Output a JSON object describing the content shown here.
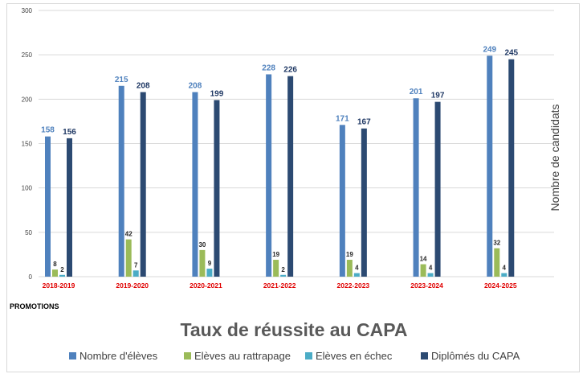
{
  "chart_data": {
    "type": "bar",
    "title": "Taux de réussite au CAPA",
    "xlabel": "PROMOTIONS",
    "ylabel": "Nombre de candidats",
    "ylim": [
      0,
      300
    ],
    "yticks": [
      0,
      50,
      100,
      150,
      200,
      250,
      300
    ],
    "grid": true,
    "legend_position": "bottom",
    "categories": [
      "2018-2019",
      "2019-2020",
      "2020-2021",
      "2021-2022",
      "2022-2023",
      "2023-2024",
      "2024-2025"
    ],
    "series": [
      {
        "name": "Nombre d'élèves",
        "color": "#4f81bd",
        "label_color": "#4f81bd",
        "values": [
          158,
          215,
          208,
          228,
          171,
          201,
          249
        ]
      },
      {
        "name": "Elèves au rattrapage",
        "color": "#9bbb59",
        "label_color": "#262626",
        "values": [
          8,
          42,
          30,
          19,
          19,
          14,
          32
        ]
      },
      {
        "name": "Elèves en échec",
        "color": "#4bacc6",
        "label_color": "#262626",
        "values": [
          2,
          7,
          9,
          2,
          4,
          4,
          4
        ]
      },
      {
        "name": "Diplômés du CAPA",
        "color": "#2c4a72",
        "label_color": "#1f3864",
        "values": [
          156,
          208,
          199,
          226,
          167,
          197,
          245
        ]
      }
    ],
    "category_label_color": "#e00000"
  }
}
